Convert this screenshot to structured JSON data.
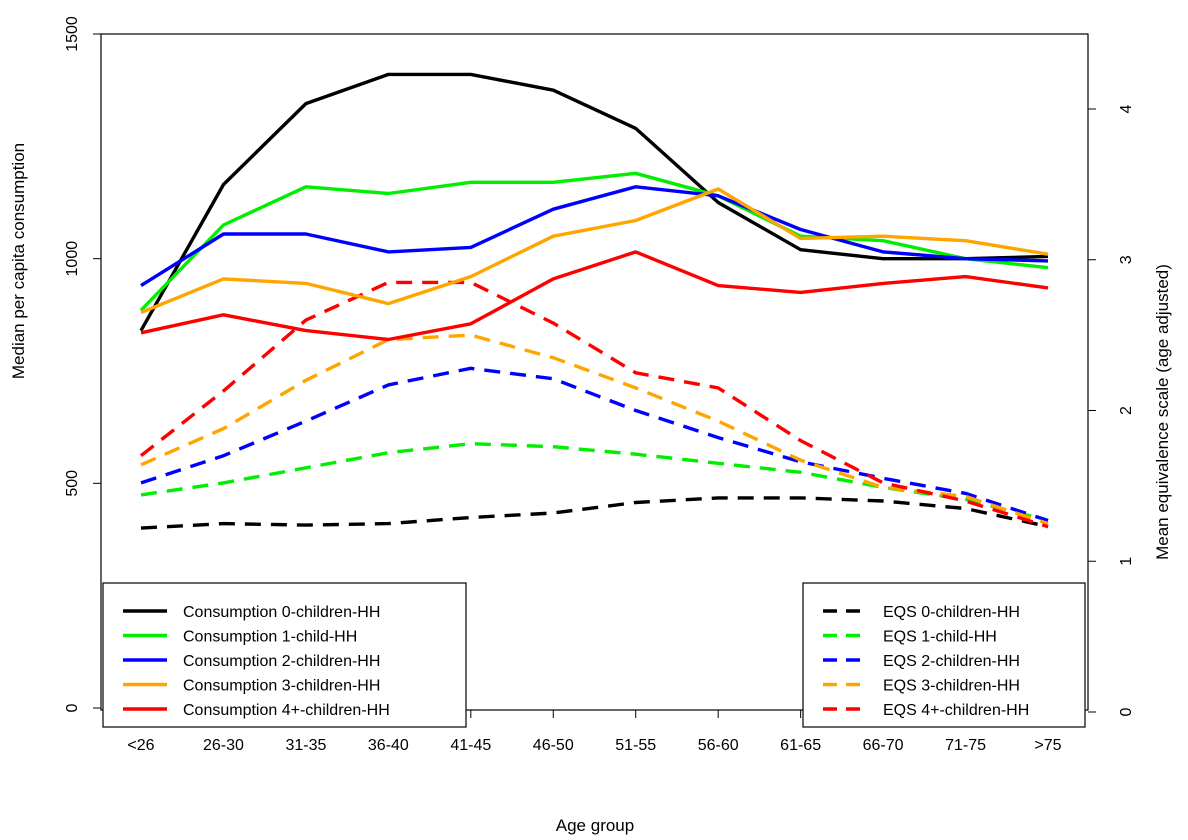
{
  "chart_data": {
    "type": "line",
    "title": "",
    "xlabel": "Age group",
    "ylabel_left": "Median per capita consumption",
    "ylabel_right": "Mean equivalence scale (age adjusted)",
    "categories": [
      "<26",
      "26-30",
      "31-35",
      "36-40",
      "41-45",
      "46-50",
      "51-55",
      "56-60",
      "61-65",
      "66-70",
      "71-75",
      ">75"
    ],
    "ylim_left": [
      0,
      1500
    ],
    "ylim_right": [
      0,
      4
    ],
    "yticks_left": [
      "0",
      "500",
      "1000",
      "1500"
    ],
    "yticks_right": [
      "0",
      "1",
      "2",
      "3",
      "4"
    ],
    "grid": false,
    "consumption_series": [
      {
        "name": "Consumption 0-children-HH",
        "color": "#000000",
        "values": [
          840,
          1165,
          1345,
          1410,
          1410,
          1375,
          1290,
          1125,
          1020,
          1000,
          1000,
          1005
        ]
      },
      {
        "name": "Consumption 1-child-HH",
        "color": "#00ee00",
        "values": [
          885,
          1075,
          1160,
          1145,
          1170,
          1170,
          1190,
          1140,
          1050,
          1040,
          1000,
          980
        ]
      },
      {
        "name": "Consumption 2-children-HH",
        "color": "#0000ff",
        "values": [
          940,
          1055,
          1055,
          1015,
          1025,
          1110,
          1160,
          1140,
          1065,
          1015,
          1000,
          995
        ]
      },
      {
        "name": "Consumption 3-children-HH",
        "color": "#ffa500",
        "values": [
          880,
          955,
          945,
          900,
          960,
          1050,
          1085,
          1155,
          1045,
          1050,
          1040,
          1010
        ]
      },
      {
        "name": "Consumption 4+-children-HH",
        "color": "#ff0000",
        "values": [
          835,
          875,
          840,
          820,
          855,
          955,
          1015,
          940,
          925,
          945,
          960,
          935
        ]
      }
    ],
    "eqs_series": [
      {
        "name": "EQS 0-children-HH",
        "color": "#000000",
        "values": [
          1.22,
          1.25,
          1.24,
          1.25,
          1.29,
          1.32,
          1.39,
          1.42,
          1.42,
          1.4,
          1.35,
          1.23
        ]
      },
      {
        "name": "EQS 1-child-HH",
        "color": "#00ee00",
        "values": [
          1.44,
          1.52,
          1.62,
          1.72,
          1.78,
          1.76,
          1.71,
          1.65,
          1.59,
          1.49,
          1.41,
          1.27
        ]
      },
      {
        "name": "EQS 2-children-HH",
        "color": "#0000ff",
        "values": [
          1.52,
          1.7,
          1.93,
          2.17,
          2.28,
          2.21,
          2.0,
          1.82,
          1.66,
          1.55,
          1.45,
          1.27
        ]
      },
      {
        "name": "EQS 3-children-HH",
        "color": "#ffa500",
        "values": [
          1.64,
          1.88,
          2.2,
          2.47,
          2.5,
          2.35,
          2.15,
          1.93,
          1.67,
          1.49,
          1.43,
          1.25
        ]
      },
      {
        "name": "EQS 4+-children-HH",
        "color": "#ff0000",
        "values": [
          1.7,
          2.13,
          2.6,
          2.85,
          2.85,
          2.58,
          2.25,
          2.15,
          1.8,
          1.52,
          1.4,
          1.23
        ]
      }
    ],
    "legend_left_position": "bottom-left",
    "legend_right_position": "bottom-right"
  }
}
